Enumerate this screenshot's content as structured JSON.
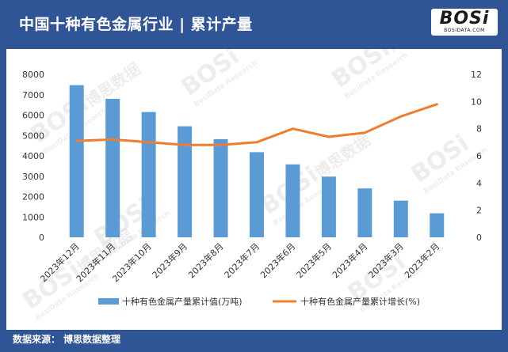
{
  "header": {
    "title": "中国十种有色金属行业 | 累计产量"
  },
  "logo": {
    "text": "BOSi",
    "subtext": "BOSIDATA.COM"
  },
  "footer": {
    "source_label": "数据来源：",
    "source_value": "博思数据整理"
  },
  "watermark": {
    "brand": "BOSi",
    "cn": "博思数据",
    "en": "BosiData Research"
  },
  "colors": {
    "frame": "#2f5597",
    "bar": "#5b9bd5",
    "line": "#ed7d31"
  },
  "chart_data": {
    "type": "bar",
    "categories": [
      "2023年12月",
      "2023年11月",
      "2023年10月",
      "2023年9月",
      "2023年8月",
      "2023年7月",
      "2023年6月",
      "2023年5月",
      "2023年4月",
      "2023年3月",
      "2023年2月"
    ],
    "series": [
      {
        "name": "十种有色金属产量累计值(万吨)",
        "type": "bar",
        "axis": "left",
        "values": [
          7470,
          6800,
          6150,
          5450,
          4820,
          4180,
          3580,
          2980,
          2400,
          1800,
          1180
        ]
      },
      {
        "name": "十种有色金属产量累计增长(%)",
        "type": "line",
        "axis": "right",
        "values": [
          7.1,
          7.2,
          7.0,
          6.8,
          6.8,
          7.0,
          8.0,
          7.4,
          7.7,
          8.9,
          9.8
        ]
      }
    ],
    "y_left": {
      "ticks": [
        "0",
        "1000",
        "2000",
        "3000",
        "4000",
        "5000",
        "6000",
        "7000",
        "8000"
      ],
      "ylim": [
        0,
        8000
      ]
    },
    "y_right": {
      "ticks": [
        "0",
        "2",
        "4",
        "6",
        "8",
        "10",
        "12"
      ],
      "ylim": [
        0,
        12
      ]
    },
    "grid": false,
    "legend_position": "bottom"
  }
}
